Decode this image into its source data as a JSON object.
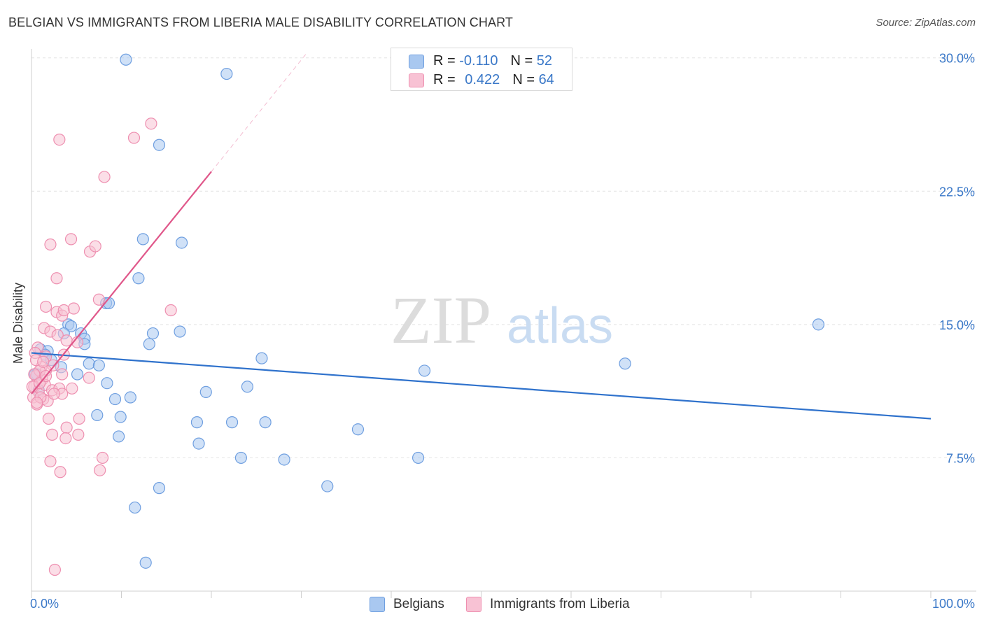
{
  "title": "BELGIAN VS IMMIGRANTS FROM LIBERIA MALE DISABILITY CORRELATION CHART",
  "source": "Source: ZipAtlas.com",
  "watermark": {
    "zip": "ZIP",
    "atlas": "atlas"
  },
  "legend_top": [
    {
      "r_label": "R = ",
      "r_value": "-0.110",
      "n_label": "N = ",
      "n_value": "52",
      "color": "#a9c8f0",
      "border": "#6f9fe0"
    },
    {
      "r_label": "R = ",
      "r_value": "0.422",
      "n_label": "N = ",
      "n_value": "64",
      "color": "#f8c2d4",
      "border": "#ee8fb0"
    }
  ],
  "chart_data": {
    "type": "scatter",
    "title": "BELGIAN VS IMMIGRANTS FROM LIBERIA MALE DISABILITY CORRELATION CHART",
    "xlabel": "",
    "ylabel": "Male Disability",
    "xlim": [
      0,
      100
    ],
    "ylim": [
      0,
      30.5
    ],
    "x_tick_labels": [
      "0.0%",
      "100.0%"
    ],
    "y_ticks": [
      7.5,
      15.0,
      22.5,
      30.0
    ],
    "y_tick_labels": [
      "7.5%",
      "15.0%",
      "22.5%",
      "30.0%"
    ],
    "grid": true,
    "series": [
      {
        "name": "Belgians",
        "color": "#a9c8f0",
        "stroke": "#6f9fe0",
        "trend": {
          "x": [
            0,
            100
          ],
          "y": [
            13.4,
            9.7
          ],
          "color": "#2f72cc"
        },
        "points": [
          [
            10.5,
            29.9
          ],
          [
            21.7,
            29.1
          ],
          [
            14.2,
            25.1
          ],
          [
            12.4,
            19.8
          ],
          [
            16.7,
            19.6
          ],
          [
            11.9,
            17.6
          ],
          [
            8.3,
            16.2
          ],
          [
            8.6,
            16.2
          ],
          [
            4.1,
            15.0
          ],
          [
            4.4,
            14.9
          ],
          [
            3.6,
            14.5
          ],
          [
            5.5,
            14.5
          ],
          [
            13.5,
            14.5
          ],
          [
            16.5,
            14.6
          ],
          [
            13.1,
            13.9
          ],
          [
            5.9,
            14.2
          ],
          [
            5.9,
            13.9
          ],
          [
            1.0,
            13.6
          ],
          [
            1.8,
            13.5
          ],
          [
            1.5,
            13.3
          ],
          [
            2.2,
            13.0
          ],
          [
            25.6,
            13.1
          ],
          [
            6.4,
            12.8
          ],
          [
            7.5,
            12.7
          ],
          [
            66.0,
            12.8
          ],
          [
            87.5,
            15.0
          ],
          [
            0.4,
            12.2
          ],
          [
            5.1,
            12.2
          ],
          [
            3.3,
            12.6
          ],
          [
            43.7,
            12.4
          ],
          [
            8.4,
            11.7
          ],
          [
            0.8,
            11.3
          ],
          [
            24.0,
            11.5
          ],
          [
            19.4,
            11.2
          ],
          [
            11.0,
            10.9
          ],
          [
            9.3,
            10.8
          ],
          [
            9.9,
            9.8
          ],
          [
            7.3,
            9.9
          ],
          [
            18.4,
            9.5
          ],
          [
            22.3,
            9.5
          ],
          [
            26.0,
            9.5
          ],
          [
            36.3,
            9.1
          ],
          [
            9.7,
            8.7
          ],
          [
            18.6,
            8.3
          ],
          [
            23.3,
            7.5
          ],
          [
            28.1,
            7.4
          ],
          [
            43.0,
            7.5
          ],
          [
            32.9,
            5.9
          ],
          [
            14.2,
            5.8
          ],
          [
            11.5,
            4.7
          ],
          [
            12.7,
            1.6
          ],
          [
            0.6,
            12.2
          ]
        ]
      },
      {
        "name": "Immigrants from Liberia",
        "color": "#f8c2d4",
        "stroke": "#ee8fb0",
        "trend": {
          "x": [
            0,
            20
          ],
          "y": [
            11.1,
            23.6
          ],
          "color": "#e0578a"
        },
        "trend_ext": {
          "x": [
            20,
            30.5
          ],
          "y": [
            23.6,
            30.2
          ]
        },
        "points": [
          [
            13.3,
            26.3
          ],
          [
            3.1,
            25.4
          ],
          [
            11.4,
            25.5
          ],
          [
            8.1,
            23.3
          ],
          [
            2.1,
            19.5
          ],
          [
            4.4,
            19.8
          ],
          [
            6.5,
            19.1
          ],
          [
            7.1,
            19.4
          ],
          [
            2.8,
            17.6
          ],
          [
            7.5,
            16.4
          ],
          [
            15.5,
            15.8
          ],
          [
            1.6,
            16.0
          ],
          [
            2.8,
            15.7
          ],
          [
            3.4,
            15.5
          ],
          [
            3.6,
            15.8
          ],
          [
            4.7,
            15.9
          ],
          [
            1.4,
            14.8
          ],
          [
            2.1,
            14.6
          ],
          [
            2.9,
            14.4
          ],
          [
            3.9,
            14.1
          ],
          [
            5.1,
            14.0
          ],
          [
            0.7,
            13.7
          ],
          [
            0.4,
            13.4
          ],
          [
            1.6,
            13.2
          ],
          [
            3.6,
            13.3
          ],
          [
            1.1,
            12.6
          ],
          [
            2.4,
            12.7
          ],
          [
            1.6,
            12.4
          ],
          [
            0.5,
            12.1
          ],
          [
            1.2,
            11.9
          ],
          [
            0.3,
            11.5
          ],
          [
            0.8,
            11.2
          ],
          [
            1.5,
            11.6
          ],
          [
            2.3,
            11.3
          ],
          [
            3.1,
            11.4
          ],
          [
            4.5,
            11.4
          ],
          [
            1.3,
            10.8
          ],
          [
            1.8,
            10.7
          ],
          [
            0.2,
            10.9
          ],
          [
            0.6,
            10.5
          ],
          [
            1.0,
            10.9
          ],
          [
            3.4,
            11.1
          ],
          [
            6.4,
            12.0
          ],
          [
            1.9,
            9.7
          ],
          [
            5.3,
            9.7
          ],
          [
            3.9,
            9.2
          ],
          [
            5.2,
            8.8
          ],
          [
            2.3,
            8.8
          ],
          [
            3.8,
            8.6
          ],
          [
            2.1,
            7.3
          ],
          [
            7.9,
            7.5
          ],
          [
            3.2,
            6.7
          ],
          [
            7.6,
            6.8
          ],
          [
            2.6,
            1.2
          ],
          [
            0.9,
            12.4
          ],
          [
            0.5,
            13.0
          ],
          [
            0.3,
            12.2
          ],
          [
            1.3,
            12.9
          ],
          [
            3.4,
            12.2
          ],
          [
            0.1,
            11.5
          ],
          [
            0.9,
            11.7
          ],
          [
            2.5,
            11.1
          ],
          [
            0.6,
            10.6
          ],
          [
            1.6,
            12.1
          ]
        ]
      }
    ]
  }
}
